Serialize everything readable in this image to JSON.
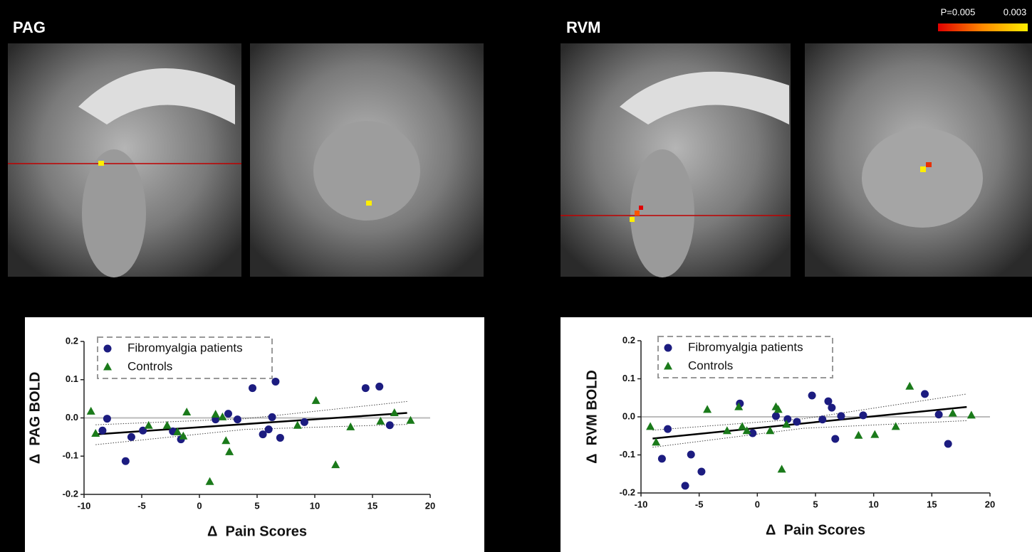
{
  "panels": [
    {
      "label": "PAG"
    },
    {
      "label": "RVM"
    }
  ],
  "colorbar": {
    "labels": [
      "P=0.005",
      "0.003"
    ]
  },
  "chart_data": [
    {
      "type": "scatter",
      "x_label": "Δ  Pain Scores",
      "y_label": "Δ  PAG BOLD",
      "xlim": [
        -10,
        20
      ],
      "ylim": [
        -0.2,
        0.2
      ],
      "xticks": [
        -10,
        -5,
        0,
        5,
        10,
        15,
        20
      ],
      "yticks": [
        -0.2,
        -0.1,
        {
          "value": 0,
          "label": "0.0"
        },
        0.1,
        0.2
      ],
      "series": [
        {
          "name": "Fibromyalgia patients",
          "color": "#1c1c80",
          "marker": "circle",
          "x": [
            -8.4,
            -8.0,
            -6.4,
            -5.9,
            -4.9,
            -2.3,
            -1.6,
            1.4,
            2.5,
            3.3,
            4.6,
            5.5,
            6.0,
            6.3,
            6.6,
            7.0,
            9.1,
            14.4,
            15.6,
            16.5
          ],
          "values": [
            -0.033,
            -0.002,
            -0.113,
            -0.05,
            -0.033,
            -0.035,
            -0.056,
            -0.004,
            0.011,
            -0.004,
            0.078,
            -0.043,
            -0.03,
            0.002,
            0.095,
            -0.052,
            -0.011,
            0.078,
            0.082,
            -0.019
          ]
        },
        {
          "name": "Controls",
          "color": "#1a7a1a",
          "marker": "triangle",
          "x": [
            -9.4,
            -9.0,
            -4.4,
            -2.8,
            -1.9,
            -1.4,
            -1.1,
            0.9,
            1.4,
            2.0,
            2.3,
            2.6,
            8.5,
            10.1,
            11.8,
            13.1,
            15.7,
            16.9,
            18.3
          ],
          "values": [
            0.017,
            -0.041,
            -0.02,
            -0.02,
            -0.037,
            -0.048,
            0.015,
            -0.167,
            0.009,
            0.002,
            -0.06,
            -0.089,
            -0.02,
            0.045,
            -0.123,
            -0.024,
            -0.009,
            0.013,
            -0.007
          ]
        }
      ],
      "fit": {
        "x": [
          -9,
          18
        ],
        "values": [
          -0.043,
          0.013
        ]
      },
      "band": {
        "x": [
          -9,
          4,
          18
        ],
        "upper": [
          -0.018,
          -0.002,
          0.043
        ],
        "lower": [
          -0.07,
          -0.03,
          -0.017
        ]
      }
    },
    {
      "type": "scatter",
      "x_label": "Δ  Pain Scores",
      "y_label": "Δ  RVM BOLD",
      "xlim": [
        -10,
        20
      ],
      "ylim": [
        -0.2,
        0.2
      ],
      "xticks": [
        -10,
        -5,
        0,
        5,
        10,
        15,
        20
      ],
      "yticks": [
        -0.2,
        -0.1,
        {
          "value": 0,
          "label": "0.0"
        },
        0.1,
        0.2
      ],
      "series": [
        {
          "name": "Fibromyalgia patients",
          "color": "#1c1c80",
          "marker": "circle",
          "x": [
            -8.2,
            -7.7,
            -6.2,
            -5.7,
            -4.8,
            -1.5,
            -0.4,
            1.6,
            2.6,
            3.4,
            4.7,
            5.6,
            6.1,
            6.4,
            6.7,
            7.2,
            9.1,
            14.4,
            15.6,
            16.4
          ],
          "values": [
            -0.11,
            -0.032,
            -0.181,
            -0.099,
            -0.144,
            0.035,
            -0.043,
            0.002,
            -0.006,
            -0.013,
            0.056,
            -0.007,
            0.041,
            0.024,
            -0.058,
            0.002,
            0.004,
            0.06,
            0.006,
            -0.071
          ]
        },
        {
          "name": "Controls",
          "color": "#1a7a1a",
          "marker": "triangle",
          "x": [
            -9.2,
            -8.7,
            -4.3,
            -2.6,
            -1.6,
            -1.3,
            -0.9,
            1.1,
            1.6,
            1.8,
            2.1,
            2.5,
            8.7,
            10.1,
            11.9,
            13.1,
            16.8,
            18.4
          ],
          "values": [
            -0.026,
            -0.067,
            0.019,
            -0.037,
            0.026,
            -0.026,
            -0.037,
            -0.037,
            0.026,
            0.019,
            -0.138,
            -0.02,
            -0.049,
            -0.047,
            -0.026,
            0.08,
            0.009,
            0.004
          ]
        }
      ],
      "fit": {
        "x": [
          -9,
          18
        ],
        "values": [
          -0.057,
          0.026
        ]
      },
      "band": {
        "x": [
          -9,
          4,
          18
        ],
        "upper": [
          -0.035,
          -0.005,
          0.06
        ],
        "lower": [
          -0.08,
          -0.03,
          -0.01
        ]
      }
    }
  ]
}
